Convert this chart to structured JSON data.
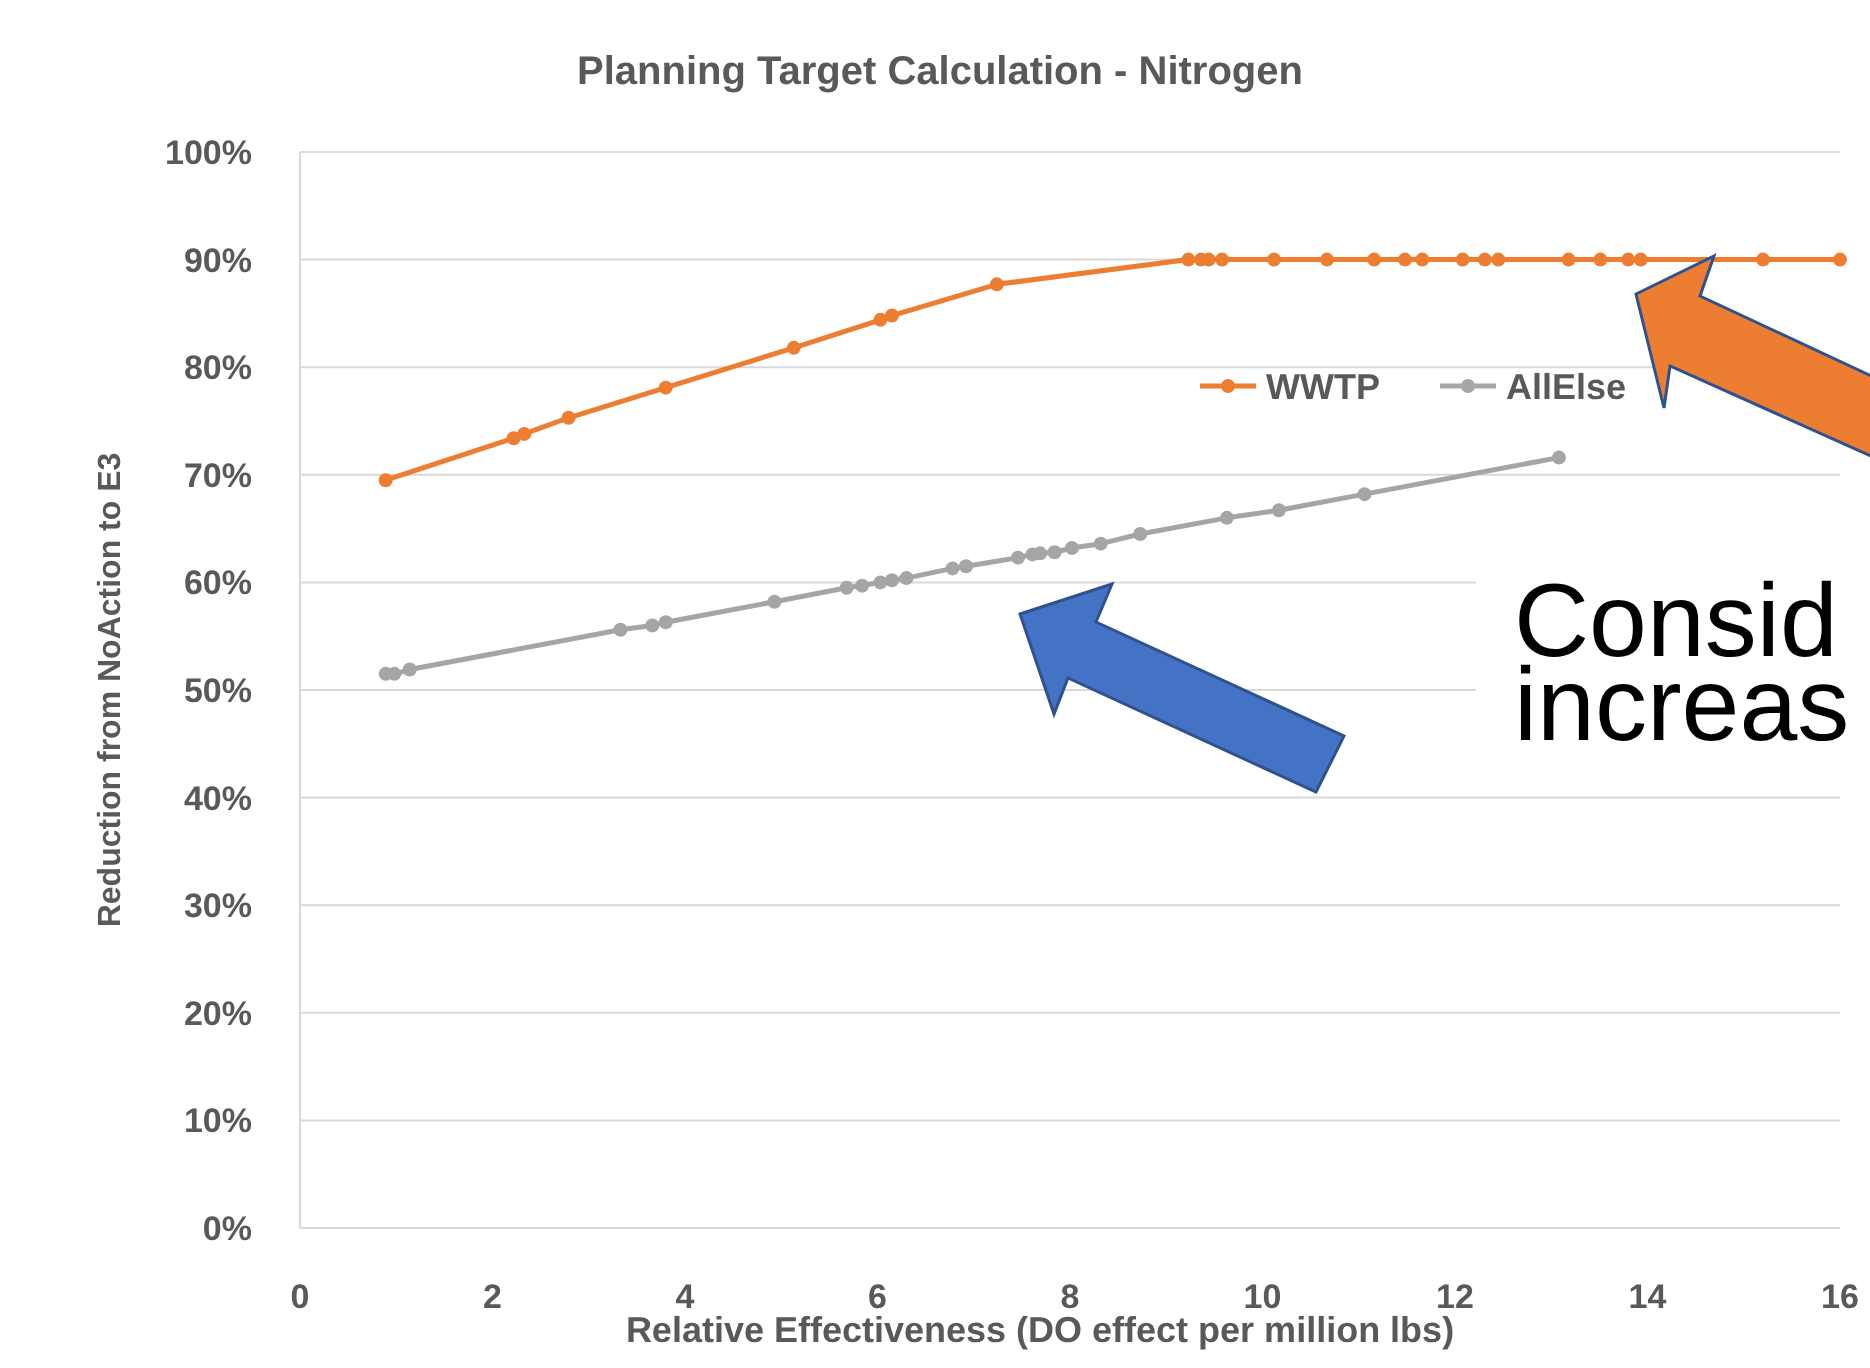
{
  "chart_data": {
    "type": "line",
    "title": "Planning Target Calculation - Nitrogen",
    "xlabel": "Relative Effectiveness (DO effect per million lbs)",
    "ylabel": "Reduction from NoAction to E3",
    "xlim": [
      0,
      16
    ],
    "xticks": [
      0,
      2,
      4,
      6,
      8,
      10,
      12,
      14,
      16
    ],
    "ylim": [
      0,
      100
    ],
    "yticks": [
      {
        "value": 0,
        "label": "0%"
      },
      {
        "value": 10,
        "label": "10%"
      },
      {
        "value": 20,
        "label": "20%"
      },
      {
        "value": 30,
        "label": "30%"
      },
      {
        "value": 40,
        "label": "40%"
      },
      {
        "value": 50,
        "label": "50%"
      },
      {
        "value": 60,
        "label": "60%"
      },
      {
        "value": 70,
        "label": "70%"
      },
      {
        "value": 80,
        "label": "80%"
      },
      {
        "value": 90,
        "label": "90%"
      },
      {
        "value": 100,
        "label": "100%"
      }
    ],
    "grid": "y",
    "legend": "top right",
    "marker": "circle",
    "line_style": "solid",
    "series": [
      {
        "name": "WWTP",
        "color": "#ed7d31",
        "x": [
          0.89,
          2.22,
          2.33,
          2.79,
          3.8,
          5.13,
          6.03,
          6.15,
          7.24,
          9.23,
          9.36,
          9.44,
          9.58,
          10.12,
          10.67,
          11.16,
          11.48,
          11.66,
          12.08,
          12.31,
          12.45,
          13.18,
          13.51,
          13.8,
          13.93,
          15.2,
          16
        ],
        "values": [
          69.5,
          73.4,
          73.8,
          75.3,
          78.1,
          81.8,
          84.4,
          84.8,
          87.7,
          90,
          90,
          90,
          90,
          90,
          90,
          90,
          90,
          90,
          90,
          90,
          90,
          90,
          90,
          90,
          90,
          90,
          90
        ]
      },
      {
        "name": "AllElse",
        "color": "#a5a5a5",
        "x": [
          0.89,
          0.98,
          1.14,
          3.33,
          3.66,
          3.8,
          4.93,
          5.68,
          5.84,
          6.03,
          6.15,
          6.3,
          6.78,
          6.92,
          7.46,
          7.61,
          7.69,
          7.84,
          8.02,
          8.32,
          8.73,
          9.63,
          10.17,
          11.06,
          13.08
        ],
        "values": [
          51.5,
          51.5,
          51.9,
          55.6,
          56.0,
          56.3,
          58.2,
          59.5,
          59.7,
          60.0,
          60.2,
          60.4,
          61.3,
          61.5,
          62.3,
          62.6,
          62.7,
          62.8,
          63.2,
          63.6,
          64.5,
          66.0,
          66.7,
          68.2,
          71.6
        ]
      }
    ],
    "annotations": [
      "Consid",
      "increas"
    ]
  }
}
